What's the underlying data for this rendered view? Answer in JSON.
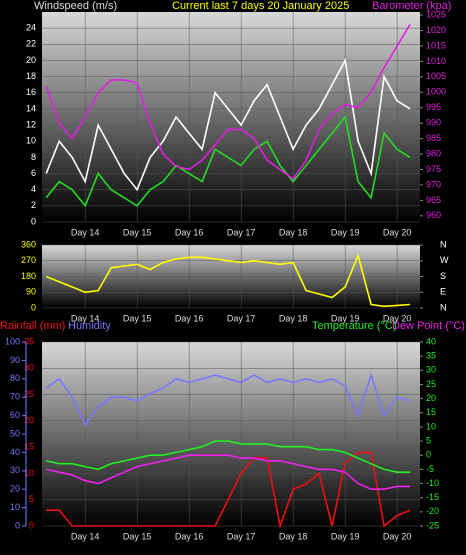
{
  "chart_data": [
    {
      "type": "line",
      "title": "Current last 7 days 20 January 2025",
      "x": [
        13.25,
        13.5,
        13.75,
        14,
        14.25,
        14.5,
        14.75,
        15,
        15.25,
        15.5,
        15.75,
        16,
        16.25,
        16.5,
        16.75,
        17,
        17.25,
        17.5,
        17.75,
        18,
        18.25,
        18.5,
        18.75,
        19,
        19.25,
        19.5,
        19.75,
        20,
        20.25
      ],
      "xlim": [
        13.17,
        20.44
      ],
      "xticks": [
        {
          "value": 14,
          "label": "Day 14"
        },
        {
          "value": 15,
          "label": "Day 15"
        },
        {
          "value": 16,
          "label": "Day 16"
        },
        {
          "value": 17,
          "label": "Day 17"
        },
        {
          "value": 18,
          "label": "Day 18"
        },
        {
          "value": 19,
          "label": "Day 19"
        },
        {
          "value": 20,
          "label": "Day 20"
        }
      ],
      "ylim": [
        0,
        26
      ],
      "yticks": [
        0,
        2,
        4,
        6,
        8,
        10,
        12,
        14,
        16,
        18,
        20,
        22,
        24
      ],
      "y2lim": [
        958,
        1026
      ],
      "y2ticks": [
        960,
        965,
        970,
        975,
        980,
        985,
        990,
        995,
        1000,
        1005,
        1010,
        1015,
        1020,
        1025
      ],
      "series": [
        {
          "name": "Windspeed (m/s)",
          "color": "#ffffff",
          "values": [
            6,
            10,
            8,
            5,
            12,
            9,
            6,
            4,
            8,
            10,
            13,
            11,
            9,
            16,
            14,
            12,
            15,
            17,
            13,
            9,
            12,
            14,
            17,
            20,
            10,
            6,
            18,
            15,
            14
          ]
        },
        {
          "color": "#22dd22",
          "values": [
            3,
            5,
            4,
            2,
            6,
            4,
            3,
            2,
            4,
            5,
            7,
            6,
            5,
            9,
            8,
            7,
            9,
            10,
            7,
            5,
            7,
            9,
            11,
            13,
            5,
            3,
            11,
            9,
            8
          ]
        },
        {
          "name": "Barometer (kpa)",
          "color": "#e020e0",
          "axis": "y2",
          "values": [
            1002,
            990,
            985,
            992,
            1000,
            1004,
            1004,
            1003,
            990,
            980,
            976,
            975,
            978,
            983,
            988,
            988,
            985,
            978,
            975,
            972,
            978,
            988,
            993,
            996,
            995,
            1000,
            1008,
            1015,
            1022
          ]
        }
      ]
    },
    {
      "type": "line",
      "x": [
        13.25,
        13.5,
        13.75,
        14,
        14.25,
        14.5,
        14.75,
        15,
        15.25,
        15.5,
        15.75,
        16,
        16.25,
        16.5,
        16.75,
        17,
        17.25,
        17.5,
        17.75,
        18,
        18.25,
        18.5,
        18.75,
        19,
        19.25,
        19.5,
        19.75,
        20,
        20.25
      ],
      "xlim": [
        13.17,
        20.44
      ],
      "xticks": [
        {
          "value": 14,
          "label": "Day 14"
        },
        {
          "value": 15,
          "label": "Day 15"
        },
        {
          "value": 16,
          "label": "Day 16"
        },
        {
          "value": 17,
          "label": "Day 17"
        },
        {
          "value": 18,
          "label": "Day 18"
        },
        {
          "value": 19,
          "label": "Day 19"
        },
        {
          "value": 20,
          "label": "Day 20"
        }
      ],
      "ylim": [
        0,
        360
      ],
      "yticks": [
        0,
        90,
        180,
        270,
        360
      ],
      "y2lim": [
        0,
        360
      ],
      "y2ticks": [
        {
          "value": 360,
          "label": "N"
        },
        {
          "value": 270,
          "label": "W"
        },
        {
          "value": 180,
          "label": "S"
        },
        {
          "value": 90,
          "label": "E"
        },
        {
          "value": 0,
          "label": "N"
        }
      ],
      "series": [
        {
          "color": "#ffff00",
          "values": [
            180,
            150,
            120,
            90,
            100,
            230,
            240,
            250,
            220,
            260,
            280,
            290,
            290,
            280,
            270,
            260,
            270,
            260,
            250,
            260,
            100,
            80,
            60,
            120,
            300,
            20,
            10,
            15,
            20
          ]
        }
      ]
    },
    {
      "type": "line",
      "x": [
        13.25,
        13.5,
        13.75,
        14,
        14.25,
        14.5,
        14.75,
        15,
        15.25,
        15.5,
        15.75,
        16,
        16.25,
        16.5,
        16.75,
        17,
        17.25,
        17.5,
        17.75,
        18,
        18.25,
        18.5,
        18.75,
        19,
        19.25,
        19.5,
        19.75,
        20,
        20.25
      ],
      "xlim": [
        13.17,
        20.44
      ],
      "xticks": [
        {
          "value": 14,
          "label": "Day 14"
        },
        {
          "value": 15,
          "label": "Day 15"
        },
        {
          "value": 16,
          "label": "Day 16"
        },
        {
          "value": 17,
          "label": "Day 17"
        },
        {
          "value": 18,
          "label": "Day 18"
        },
        {
          "value": 19,
          "label": "Day 19"
        },
        {
          "value": 20,
          "label": "Day 20"
        }
      ],
      "ylim": [
        0,
        35
      ],
      "yticks": [
        0,
        5,
        10,
        15,
        20,
        25,
        30,
        35
      ],
      "y3lim": [
        0,
        100
      ],
      "y3ticks": [
        0,
        10,
        20,
        30,
        40,
        50,
        60,
        70,
        80,
        90,
        100
      ],
      "y2lim": [
        -25,
        40
      ],
      "y2ticks": [
        -25,
        -20,
        -15,
        -10,
        -5,
        0,
        5,
        10,
        15,
        20,
        25,
        30,
        35,
        40
      ],
      "series": [
        {
          "name": "Rainfall (mm)",
          "color": "#ee1111",
          "values": [
            3,
            3,
            0,
            0,
            0,
            0,
            0,
            0,
            0,
            0,
            0,
            0,
            0,
            0,
            5,
            10,
            13,
            13,
            0,
            7,
            8,
            10,
            0,
            12,
            14,
            14,
            0,
            2,
            3
          ]
        },
        {
          "name": "Humidity",
          "color": "#7777ff",
          "axis": "y3",
          "values": [
            75,
            80,
            70,
            55,
            65,
            70,
            70,
            68,
            72,
            75,
            80,
            78,
            80,
            82,
            80,
            78,
            82,
            78,
            80,
            78,
            80,
            78,
            80,
            76,
            60,
            82,
            60,
            70,
            68
          ]
        },
        {
          "name": "Temperature (°C)",
          "color": "#22ee22",
          "axis": "y2",
          "values": [
            -2,
            -3,
            -3,
            -4,
            -5,
            -3,
            -2,
            -1,
            0,
            0,
            1,
            2,
            3,
            5,
            5,
            4,
            4,
            4,
            3,
            3,
            3,
            2,
            2,
            1,
            -1,
            -3,
            -5,
            -6,
            -6
          ]
        },
        {
          "name": "Dew Point (°C)",
          "color": "#ee22ee",
          "axis": "y2",
          "values": [
            -5,
            -6,
            -7,
            -9,
            -10,
            -8,
            -6,
            -4,
            -3,
            -2,
            -1,
            0,
            0,
            0,
            0,
            -1,
            -1,
            -2,
            -2,
            -3,
            -4,
            -5,
            -5,
            -6,
            -10,
            -12,
            -12,
            -11,
            -11
          ]
        }
      ]
    }
  ]
}
